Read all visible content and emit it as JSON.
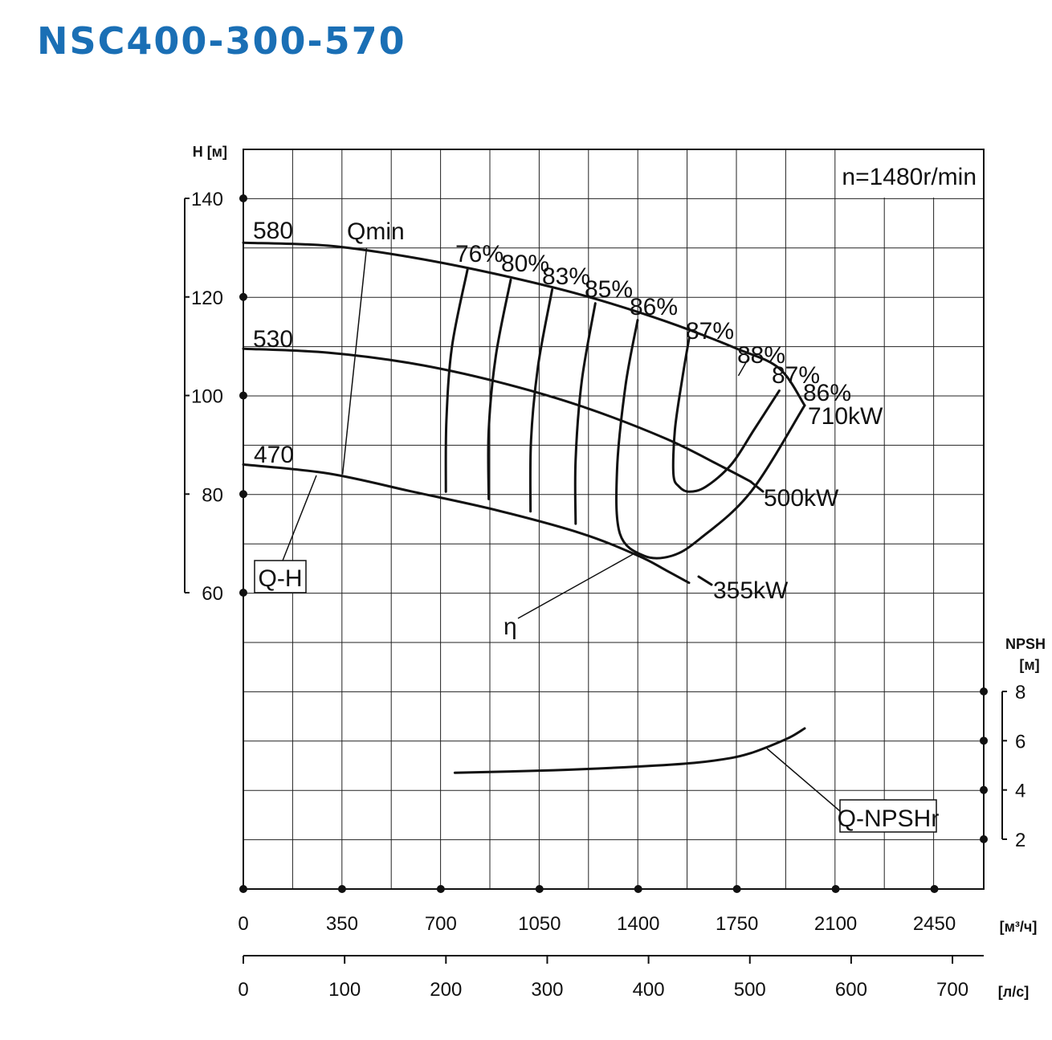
{
  "title": "NSC400-300-570",
  "speed_label": "n=1480r/min",
  "colors": {
    "title": "#1a6fb5",
    "lines": "#111111"
  },
  "chart_data": {
    "type": "line",
    "axes": {
      "x_flow_m3h": {
        "label": "[м³/ч]",
        "ticks": [
          0,
          350,
          700,
          1050,
          1400,
          1750,
          2100,
          2450
        ],
        "range": [
          0,
          2625
        ]
      },
      "x_flow_ls": {
        "label": "[л/с]",
        "ticks": [
          0,
          100,
          200,
          300,
          400,
          500,
          600,
          700
        ]
      },
      "y_head": {
        "label": "H [м]",
        "ticks": [
          60,
          80,
          100,
          120,
          140
        ],
        "range": [
          60,
          150
        ]
      },
      "y_npsh": {
        "label_line1": "NPSH",
        "label_line2": "[м]",
        "ticks": [
          2,
          4,
          6,
          8
        ],
        "range": [
          0,
          10
        ]
      }
    },
    "head_curves": [
      {
        "name": "580",
        "points": [
          [
            0,
            131
          ],
          [
            300,
            130.4
          ],
          [
            600,
            128
          ],
          [
            900,
            124.6
          ],
          [
            1200,
            120.4
          ],
          [
            1500,
            115
          ],
          [
            1750,
            109.5
          ],
          [
            1900,
            105.5
          ],
          [
            1990,
            98
          ]
        ]
      },
      {
        "name": "530",
        "points": [
          [
            0,
            109.5
          ],
          [
            300,
            108.7
          ],
          [
            600,
            106.5
          ],
          [
            900,
            102.8
          ],
          [
            1200,
            97.8
          ],
          [
            1500,
            91.2
          ],
          [
            1700,
            85.5
          ],
          [
            1800,
            82.5
          ]
        ]
      },
      {
        "name": "470",
        "points": [
          [
            0,
            86
          ],
          [
            300,
            84.2
          ],
          [
            600,
            80.5
          ],
          [
            900,
            76.7
          ],
          [
            1200,
            72
          ],
          [
            1400,
            67.5
          ],
          [
            1500,
            64.5
          ],
          [
            1580,
            62
          ]
        ]
      }
    ],
    "qmin": {
      "label": "Qmin",
      "points": [
        [
          437,
          130
        ],
        [
          352,
          84
        ]
      ]
    },
    "efficiency_curves": [
      {
        "name": "76%",
        "points": [
          [
            795,
            125.6
          ],
          [
            740,
            110
          ],
          [
            720,
            95
          ],
          [
            718,
            80.5
          ]
        ]
      },
      {
        "name": "80%",
        "points": [
          [
            948,
            123.5
          ],
          [
            895,
            108
          ],
          [
            870,
            93
          ],
          [
            870,
            79
          ]
        ]
      },
      {
        "name": "83%",
        "points": [
          [
            1095,
            121.5
          ],
          [
            1045,
            106
          ],
          [
            1020,
            91
          ],
          [
            1018,
            76.5
          ]
        ]
      },
      {
        "name": "85%",
        "points": [
          [
            1248,
            118.7
          ],
          [
            1200,
            103
          ],
          [
            1178,
            87
          ],
          [
            1178,
            74
          ]
        ]
      },
      {
        "name": "86%",
        "points": [
          [
            1398,
            115.3
          ],
          [
            1355,
            102
          ],
          [
            1325,
            85
          ],
          [
            1335,
            72
          ],
          [
            1420,
            67.5
          ],
          [
            1520,
            67.5
          ],
          [
            1620,
            71
          ],
          [
            1800,
            80.5
          ],
          [
            1990,
            98
          ]
        ]
      },
      {
        "name": "87%",
        "points": [
          [
            1580,
            111.5
          ],
          [
            1555,
            103
          ],
          [
            1530,
            93
          ],
          [
            1525,
            84
          ],
          [
            1545,
            81.5
          ],
          [
            1580,
            80.5
          ],
          [
            1640,
            81.5
          ],
          [
            1730,
            86
          ],
          [
            1810,
            93
          ],
          [
            1900,
            101
          ]
        ]
      },
      {
        "name": "88%",
        "points": [
          [
            1755,
            104
          ],
          [
            1790,
            107.5
          ]
        ]
      }
    ],
    "efficiency_labels": [
      "76%",
      "80%",
      "83%",
      "85%",
      "86%",
      "87%",
      "88%",
      "87%",
      "86%"
    ],
    "power_labels": [
      "710kW",
      "500kW",
      "355kW"
    ],
    "npshr": {
      "name": "Q-NPSHr",
      "points": [
        [
          750,
          4.7
        ],
        [
          1100,
          4.8
        ],
        [
          1400,
          4.95
        ],
        [
          1600,
          5.1
        ],
        [
          1730,
          5.3
        ],
        [
          1800,
          5.5
        ],
        [
          1870,
          5.8
        ],
        [
          1940,
          6.15
        ],
        [
          1990,
          6.5
        ]
      ]
    },
    "curve_labels": {
      "qh": "Q-H",
      "eta": "η",
      "npsh": "Q-NPSHr"
    },
    "grid": true
  }
}
